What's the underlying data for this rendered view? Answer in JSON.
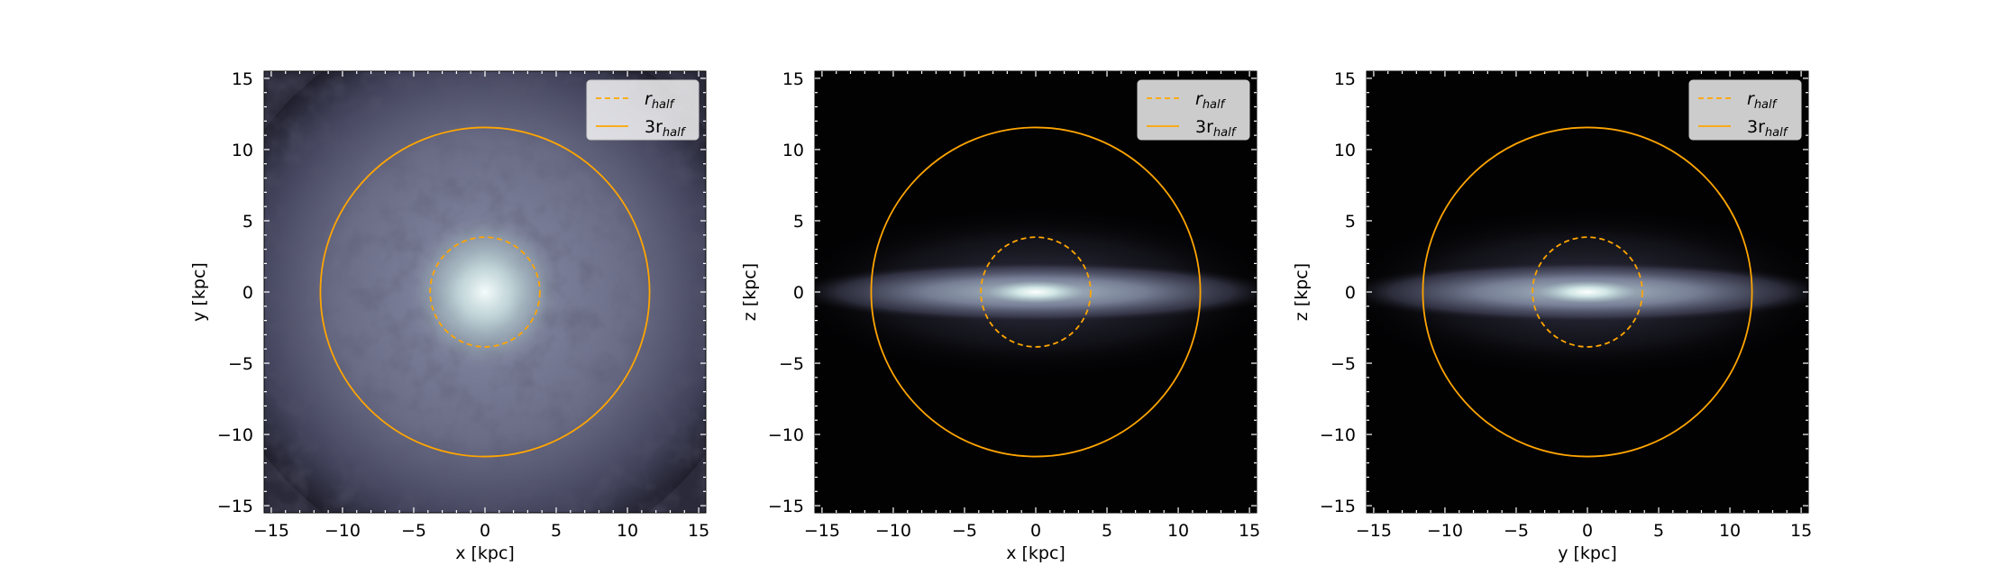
{
  "chart_data": [
    {
      "type": "heatmap",
      "projection": "face-on",
      "xlabel": "x [kpc]",
      "ylabel": "y [kpc]",
      "xlim": [
        -15.5,
        15.5
      ],
      "ylim": [
        -15.5,
        15.5
      ],
      "xticks": [
        -15,
        -10,
        -5,
        0,
        5,
        10,
        15
      ],
      "yticks": [
        -15,
        -10,
        -5,
        0,
        5,
        10,
        15
      ],
      "colormap": "bone",
      "circles": [
        {
          "name": "r_half",
          "radius": 3.85,
          "style": "dashed",
          "color": "#FFA500"
        },
        {
          "name": "3r_half",
          "radius": 11.55,
          "style": "solid",
          "color": "#FFA500"
        }
      ],
      "legend": {
        "placement": "top-right",
        "entries": [
          {
            "base": "r",
            "sub": "half",
            "style": "dashed"
          },
          {
            "base": "3r",
            "sub": "half",
            "style": "solid"
          }
        ]
      }
    },
    {
      "type": "heatmap",
      "projection": "edge-on",
      "xlabel": "x [kpc]",
      "ylabel": "z [kpc]",
      "xlim": [
        -15.5,
        15.5
      ],
      "ylim": [
        -15.5,
        15.5
      ],
      "xticks": [
        -15,
        -10,
        -5,
        0,
        5,
        10,
        15
      ],
      "yticks": [
        -15,
        -10,
        -5,
        0,
        5,
        10,
        15
      ],
      "colormap": "bone",
      "circles": [
        {
          "name": "r_half",
          "radius": 3.85,
          "style": "dashed",
          "color": "#FFA500"
        },
        {
          "name": "3r_half",
          "radius": 11.55,
          "style": "solid",
          "color": "#FFA500"
        }
      ],
      "legend": {
        "placement": "top-right",
        "entries": [
          {
            "base": "r",
            "sub": "half",
            "style": "dashed"
          },
          {
            "base": "3r",
            "sub": "half",
            "style": "solid"
          }
        ]
      }
    },
    {
      "type": "heatmap",
      "projection": "edge-on",
      "xlabel": "y [kpc]",
      "ylabel": "z [kpc]",
      "xlim": [
        -15.5,
        15.5
      ],
      "ylim": [
        -15.5,
        15.5
      ],
      "xticks": [
        -15,
        -10,
        -5,
        0,
        5,
        10,
        15
      ],
      "yticks": [
        -15,
        -10,
        -5,
        0,
        5,
        10,
        15
      ],
      "colormap": "bone",
      "circles": [
        {
          "name": "r_half",
          "radius": 3.85,
          "style": "dashed",
          "color": "#FFA500"
        },
        {
          "name": "3r_half",
          "radius": 11.55,
          "style": "solid",
          "color": "#FFA500"
        }
      ],
      "legend": {
        "placement": "top-right",
        "entries": [
          {
            "base": "r",
            "sub": "half",
            "style": "dashed"
          },
          {
            "base": "3r",
            "sub": "half",
            "style": "solid"
          }
        ]
      }
    }
  ]
}
